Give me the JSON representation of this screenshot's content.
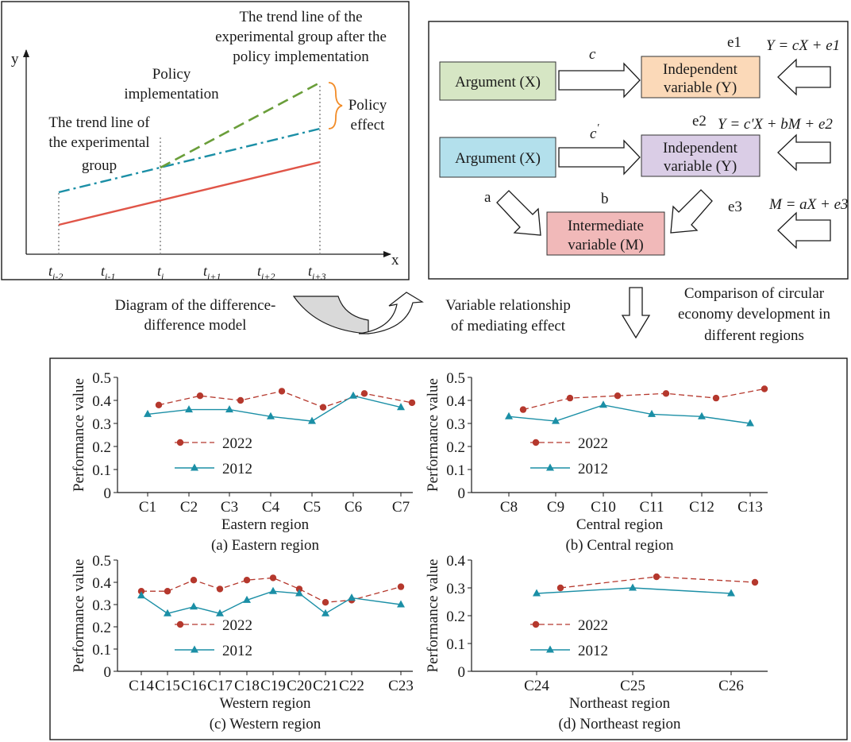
{
  "did_panel": {
    "y_label": "y",
    "x_label": "x",
    "ticks": [
      "t",
      "t",
      "t",
      "t",
      "t",
      "t"
    ],
    "tick_subs": [
      "i-2",
      "i-1",
      "i",
      "i+1",
      "i+2",
      "i+3"
    ],
    "annot_after": [
      "The trend line of the",
      "experimental group after the",
      "policy implementation"
    ],
    "annot_policy": [
      "Policy",
      "implementation"
    ],
    "annot_trend": [
      "The trend line of",
      "the experimental",
      "group"
    ],
    "annot_effect": [
      "Policy",
      "effect"
    ],
    "caption": [
      "Diagram of the difference-",
      "difference model"
    ],
    "colors": {
      "control": "#e05548",
      "experimental": "#1b8fa6",
      "after": "#6a9e3a",
      "brace": "#f28c28"
    }
  },
  "mediation_panel": {
    "row1": {
      "x_box": "Argument (X)",
      "path": "c",
      "y_box": [
        "Independent",
        "variable (Y)"
      ],
      "error": "e1",
      "eq": "Y = cX + e1"
    },
    "row2": {
      "x_box": "Argument (X)",
      "path": "c",
      "path_prime": "'",
      "y_box": [
        "Independent",
        "variable (Y)"
      ],
      "error": "e2",
      "eq": "Y = c'X + bM + e2"
    },
    "row3": {
      "a": "a",
      "b": "b",
      "m_box": [
        "Intermediate",
        "variable (M)"
      ],
      "error": "e3",
      "eq": "M = aX + e3"
    },
    "caption": [
      "Variable relationship",
      "of mediating effect"
    ],
    "colors": {
      "x1": "#d6e6c4",
      "y1": "#fbd9b8",
      "x2": "#b3e0ec",
      "y2": "#dacde6",
      "m": "#f1b9b9"
    }
  },
  "comparison_caption": [
    "Comparison of circular",
    "economy development in",
    "different regions"
  ],
  "legend": {
    "s2022": "2022",
    "s2012": "2012"
  },
  "series_colors": {
    "s2022": "#b5382d",
    "s2012": "#1b8fa6"
  },
  "chart_data": [
    {
      "type": "line",
      "title": "(a) Eastern region",
      "xlabel": "Eastern region",
      "ylabel": "Performance value",
      "ylim": [
        0,
        0.5
      ],
      "yticks": [
        0,
        0.1,
        0.2,
        0.3,
        0.4,
        0.5
      ],
      "ytick_labels": [
        "0",
        "0.1",
        "0.2",
        "0.3",
        "0.4",
        "0.5"
      ],
      "categories": [
        "C1",
        "C2",
        "C3",
        "C4",
        "C5",
        "C6",
        "C7"
      ],
      "series": [
        {
          "name": "2022",
          "values": [
            0.38,
            0.42,
            0.4,
            0.44,
            0.37,
            0.43,
            0.39
          ]
        },
        {
          "name": "2012",
          "values": [
            0.34,
            0.36,
            0.36,
            0.33,
            0.31,
            0.42,
            0.37
          ]
        }
      ]
    },
    {
      "type": "line",
      "title": "(b) Central region",
      "xlabel": "Central region",
      "ylabel": "Performance value",
      "ylim": [
        0,
        0.5
      ],
      "yticks": [
        0,
        0.1,
        0.2,
        0.3,
        0.4,
        0.5
      ],
      "ytick_labels": [
        "0",
        "0.1",
        "0.2",
        "0.3",
        "0.4",
        "0.5"
      ],
      "categories": [
        "C8",
        "C9",
        "C10",
        "C11",
        "C12",
        "C13"
      ],
      "series": [
        {
          "name": "2022",
          "values": [
            0.36,
            0.41,
            0.42,
            0.43,
            0.41,
            0.45
          ]
        },
        {
          "name": "2012",
          "values": [
            0.33,
            0.31,
            0.38,
            0.34,
            0.33,
            0.3
          ]
        }
      ]
    },
    {
      "type": "line",
      "title": "(c) Western region",
      "xlabel": "Western region",
      "ylabel": "Performance value",
      "ylim": [
        0,
        0.5
      ],
      "yticks": [
        0,
        0.1,
        0.2,
        0.3,
        0.4,
        0.5
      ],
      "ytick_labels": [
        "0",
        "0.1",
        "0.2",
        "0.3",
        "0.4",
        "0.5"
      ],
      "categories": [
        "C14",
        "C15",
        "C16",
        "C17",
        "C18",
        "C19",
        "C20",
        "C21",
        "C22",
        "C23"
      ],
      "series": [
        {
          "name": "2022",
          "values": [
            0.36,
            0.36,
            0.41,
            0.37,
            0.41,
            0.42,
            0.37,
            0.31,
            0.32,
            0.38
          ]
        },
        {
          "name": "2012",
          "values": [
            0.34,
            0.26,
            0.29,
            0.26,
            0.32,
            0.36,
            0.35,
            0.26,
            0.33,
            0.3
          ]
        }
      ]
    },
    {
      "type": "line",
      "title": "(d) Northeast region",
      "xlabel": "Northeast region",
      "ylabel": "Performance value",
      "ylim": [
        0,
        0.4
      ],
      "yticks": [
        0,
        0.1,
        0.2,
        0.3,
        0.4
      ],
      "ytick_labels": [
        "0",
        "0.1",
        "0.2",
        "0.3",
        "0.4"
      ],
      "categories": [
        "C24",
        "C25",
        "C26"
      ],
      "series": [
        {
          "name": "2022",
          "values": [
            0.3,
            0.34,
            0.32
          ]
        },
        {
          "name": "2012",
          "values": [
            0.28,
            0.3,
            0.28
          ]
        }
      ]
    }
  ]
}
